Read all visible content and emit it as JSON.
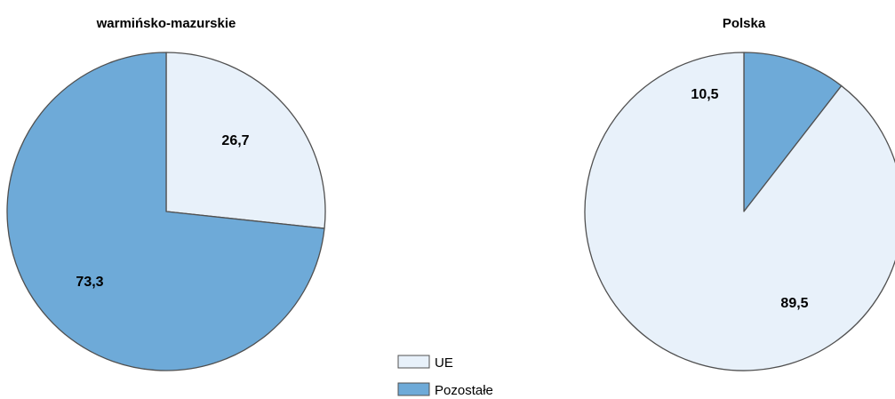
{
  "chart_data": [
    {
      "type": "pie",
      "title": "warmińsko-mazurskie",
      "series": [
        {
          "name": "UE",
          "values": [
            26.7
          ]
        },
        {
          "name": "Pozostałe",
          "values": [
            73.3
          ]
        }
      ],
      "slices": [
        {
          "label": "UE",
          "value": 26.7,
          "display": "26,7"
        },
        {
          "label": "Pozostałe",
          "value": 73.3,
          "display": "73,3"
        }
      ]
    },
    {
      "type": "pie",
      "title": "Polska",
      "slices": [
        {
          "label": "UE",
          "value": 89.5,
          "display": "89,5"
        },
        {
          "label": "Pozostałe",
          "value": 10.5,
          "display": "10,5"
        }
      ]
    }
  ],
  "legend": {
    "placement": "bottom-center",
    "items": [
      {
        "label": "UE",
        "color": "#e8f1fa"
      },
      {
        "label": "Pozostałe",
        "color": "#6eaad8"
      }
    ]
  },
  "colors": {
    "UE": "#e8f1fa",
    "Pozostałe": "#6eaad8",
    "outline": "#505050"
  }
}
